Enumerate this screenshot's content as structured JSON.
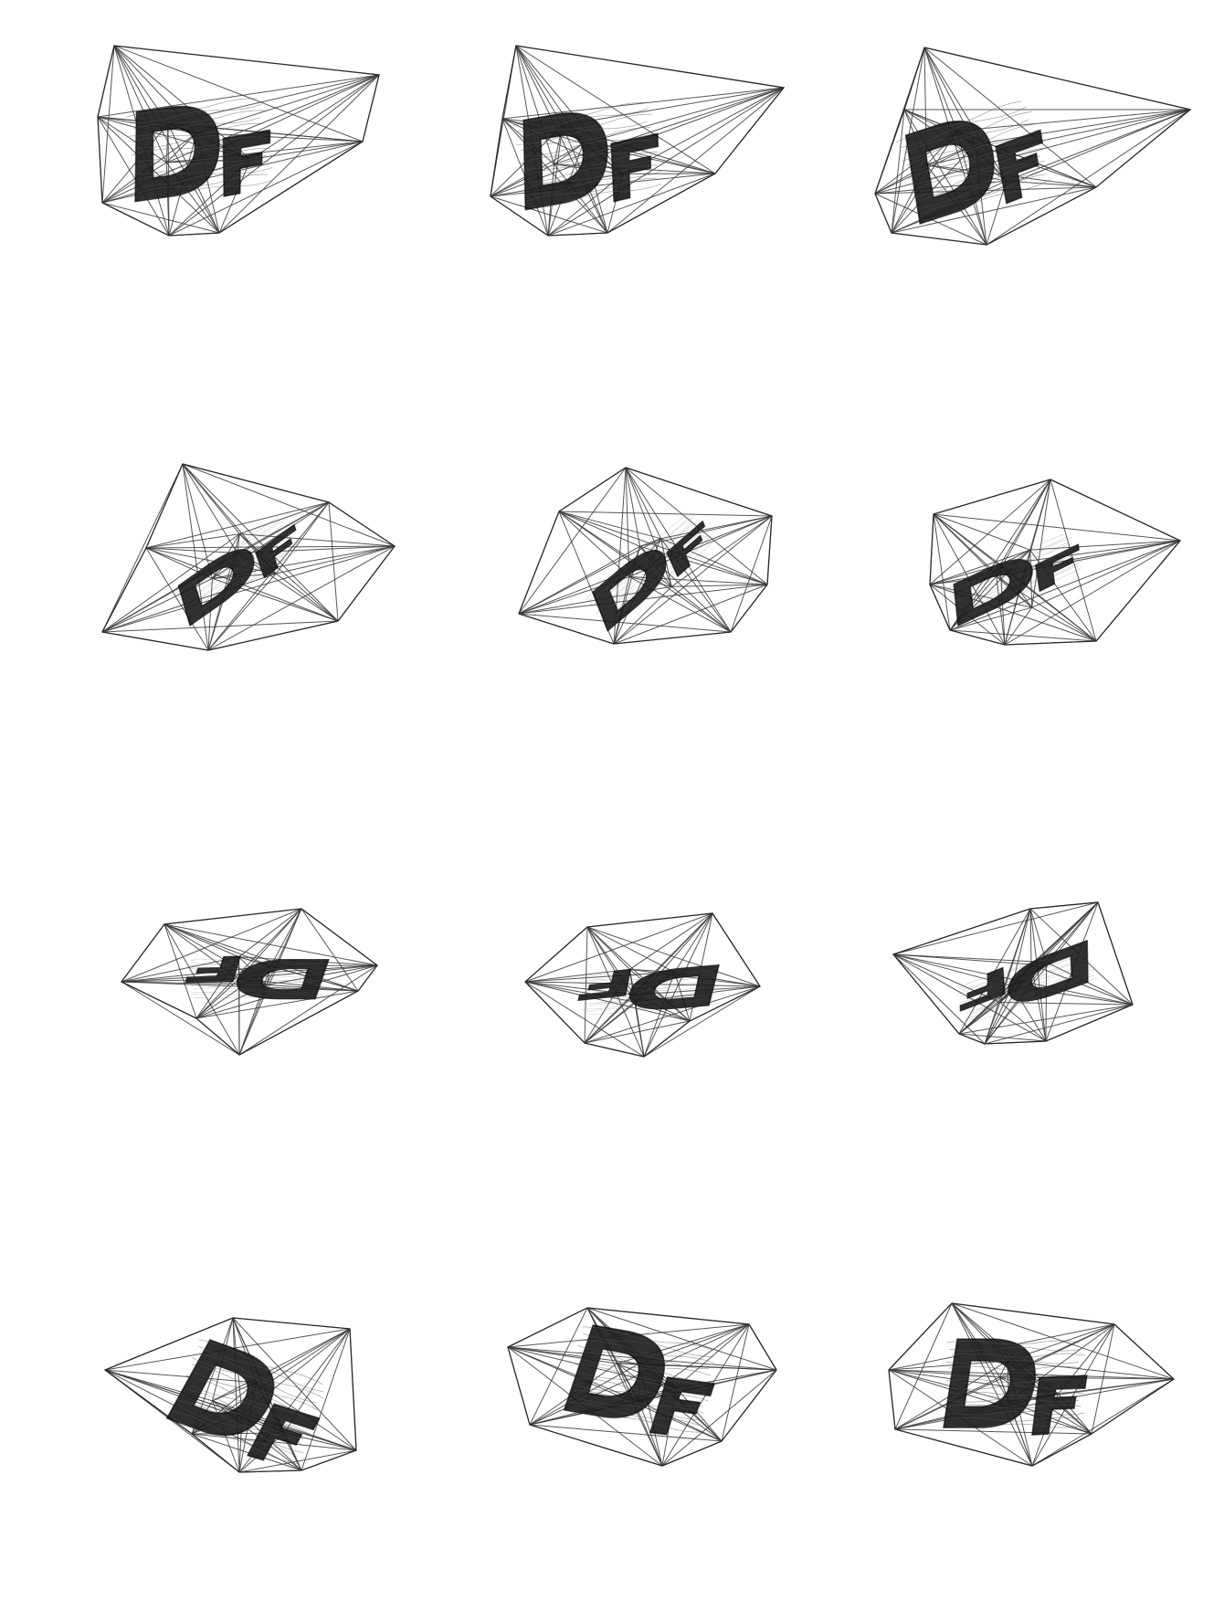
{
  "sheet": {
    "background": "#ffffff",
    "wire_color": "#3a3a3a",
    "glyph_color": "#1c1c1c",
    "rows": 4,
    "columns": 3,
    "frames": [
      {
        "row": 1,
        "column": 1,
        "lettering": "DF",
        "rotation_deg": -8
      },
      {
        "row": 1,
        "column": 2,
        "lettering": "DF",
        "rotation_deg": -10
      },
      {
        "row": 1,
        "column": 3,
        "lettering": "DF",
        "rotation_deg": -18
      },
      {
        "row": 2,
        "column": 1,
        "lettering": "DF",
        "rotation_deg": -35
      },
      {
        "row": 2,
        "column": 2,
        "lettering": "DF",
        "rotation_deg": -40
      },
      {
        "row": 2,
        "column": 3,
        "lettering": "DF",
        "rotation_deg": -25
      },
      {
        "row": 3,
        "column": 1,
        "lettering": "DF",
        "rotation_deg": 180
      },
      {
        "row": 3,
        "column": 2,
        "lettering": "DF",
        "rotation_deg": 175
      },
      {
        "row": 3,
        "column": 3,
        "lettering": "DF",
        "rotation_deg": 160
      },
      {
        "row": 4,
        "column": 1,
        "lettering": "DF",
        "rotation_deg": 20
      },
      {
        "row": 4,
        "column": 2,
        "lettering": "DF",
        "rotation_deg": 10
      },
      {
        "row": 4,
        "column": 3,
        "lettering": "DF",
        "rotation_deg": 0
      }
    ]
  }
}
